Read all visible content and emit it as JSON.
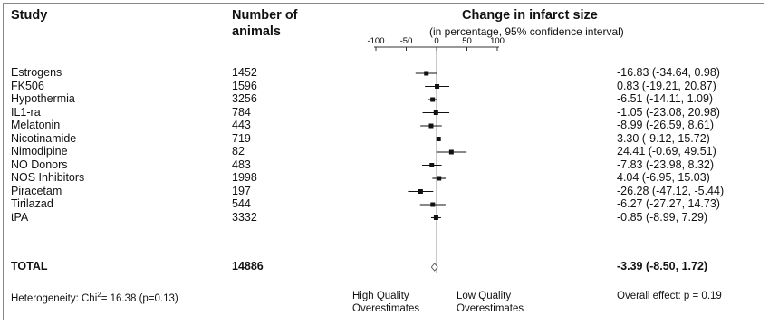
{
  "headers": {
    "study": "Study",
    "animals_l1": "Number of",
    "animals_l2": "animals",
    "effect_title": "Change in infarct size",
    "effect_sub": "(in percentage, 95% confidence interval)"
  },
  "footer": {
    "heterogeneity": "Heterogeneity: Chi",
    "heterogeneity_sup": "2",
    "heterogeneity_val": "= 16.38 (p=0.13)",
    "left_note_1": "High Quality",
    "left_note_2": "Overestimates",
    "right_note_1": "Low Quality",
    "right_note_2": "Overestimates",
    "overall": "Overall effect: p = 0.19"
  },
  "chart_data": {
    "type": "forest",
    "x_ticks": [
      -100,
      -50,
      0,
      50,
      100
    ],
    "x_tick_labels": [
      "-100",
      "-50",
      "0",
      "50",
      "100"
    ],
    "xlim": [
      -100,
      100
    ],
    "studies": [
      {
        "name": "Estrogens",
        "n": "1452",
        "estimate": -16.83,
        "lo": -34.64,
        "hi": 0.98,
        "label": "-16.83 (-34.64, 0.98)"
      },
      {
        "name": "FK506",
        "n": "1596",
        "estimate": 0.83,
        "lo": -19.21,
        "hi": 20.87,
        "label": "0.83 (-19.21, 20.87)"
      },
      {
        "name": "Hypothermia",
        "n": "3256",
        "estimate": -6.51,
        "lo": -14.11,
        "hi": 1.09,
        "label": "-6.51 (-14.11, 1.09)"
      },
      {
        "name": "IL1-ra",
        "n": "784",
        "estimate": -1.05,
        "lo": -23.08,
        "hi": 20.98,
        "label": "-1.05 (-23.08, 20.98)"
      },
      {
        "name": "Melatonin",
        "n": "443",
        "estimate": -8.99,
        "lo": -26.59,
        "hi": 8.61,
        "label": "-8.99 (-26.59, 8.61)"
      },
      {
        "name": "Nicotinamide",
        "n": "719",
        "estimate": 3.3,
        "lo": -9.12,
        "hi": 15.72,
        "label": "3.30 (-9.12, 15.72)"
      },
      {
        "name": "Nimodipine",
        "n": "82",
        "estimate": 24.41,
        "lo": -0.69,
        "hi": 49.51,
        "label": "24.41 (-0.69, 49.51)"
      },
      {
        "name": "NO Donors",
        "n": "483",
        "estimate": -7.83,
        "lo": -23.98,
        "hi": 8.32,
        "label": "-7.83 (-23.98, 8.32)"
      },
      {
        "name": "NOS Inhibitors",
        "n": "1998",
        "estimate": 4.04,
        "lo": -6.95,
        "hi": 15.03,
        "label": "4.04 (-6.95, 15.03)"
      },
      {
        "name": "Piracetam",
        "n": "197",
        "estimate": -26.28,
        "lo": -47.12,
        "hi": -5.44,
        "label": "-26.28 (-47.12, -5.44)"
      },
      {
        "name": "Tirilazad",
        "n": "544",
        "estimate": -6.27,
        "lo": -27.27,
        "hi": 14.73,
        "label": "-6.27 (-27.27, 14.73)"
      },
      {
        "name": "tPA",
        "n": "3332",
        "estimate": -0.85,
        "lo": -8.99,
        "hi": 7.29,
        "label": "-0.85 (-8.99, 7.29)"
      }
    ],
    "total": {
      "name": "TOTAL",
      "n": "14886",
      "estimate": -3.39,
      "lo": -8.5,
      "hi": 1.72,
      "label": "-3.39 (-8.50, 1.72)"
    }
  }
}
